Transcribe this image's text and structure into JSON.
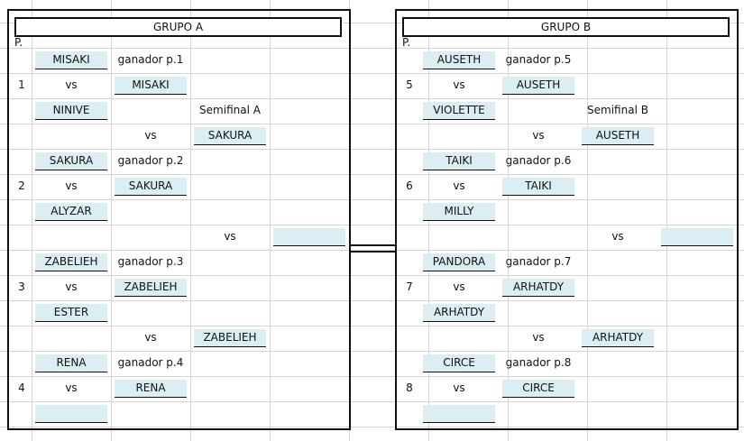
{
  "groups": [
    {
      "title": "GRUPO A",
      "p_label": "P.",
      "m1a": "MISAKI",
      "m1b": "NINIVE",
      "w1_label": "ganador p.1",
      "w1": "MISAKI",
      "n1": "1",
      "m2a": "SAKURA",
      "m2b": "ALYZAR",
      "w2_label": "ganador p.2",
      "w2": "SAKURA",
      "n2": "2",
      "m3a": "ZABELIEH",
      "m3b": "ESTER",
      "w3_label": "ganador p.3",
      "w3": "ZABELIEH",
      "n3": "3",
      "m4a": "RENA",
      "m4b": "",
      "w4_label": "ganador p.4",
      "w4": "RENA",
      "n4": "4",
      "semi_label": "Semifinal A",
      "s1": "SAKURA",
      "s2": "ZABELIEH",
      "final": "",
      "vs": "vs"
    },
    {
      "title": "GRUPO B",
      "p_label": "P.",
      "m1a": "AUSETH",
      "m1b": "VIOLETTE",
      "w1_label": "ganador p.5",
      "w1": "AUSETH",
      "n1": "5",
      "m2a": "TAIKI",
      "m2b": "MILLY",
      "w2_label": "ganador p.6",
      "w2": "TAIKI",
      "n2": "6",
      "m3a": "PANDORA",
      "m3b": "ARHATDY",
      "w3_label": "ganador p.7",
      "w3": "ARHATDY",
      "n3": "7",
      "m4a": "CIRCE",
      "m4b": "",
      "w4_label": "ganador p.8",
      "w4": "CIRCE",
      "n4": "8",
      "semi_label": "Semifinal B",
      "s1": "AUSETH",
      "s2": "ARHATDY",
      "final": "",
      "vs": "vs"
    }
  ]
}
